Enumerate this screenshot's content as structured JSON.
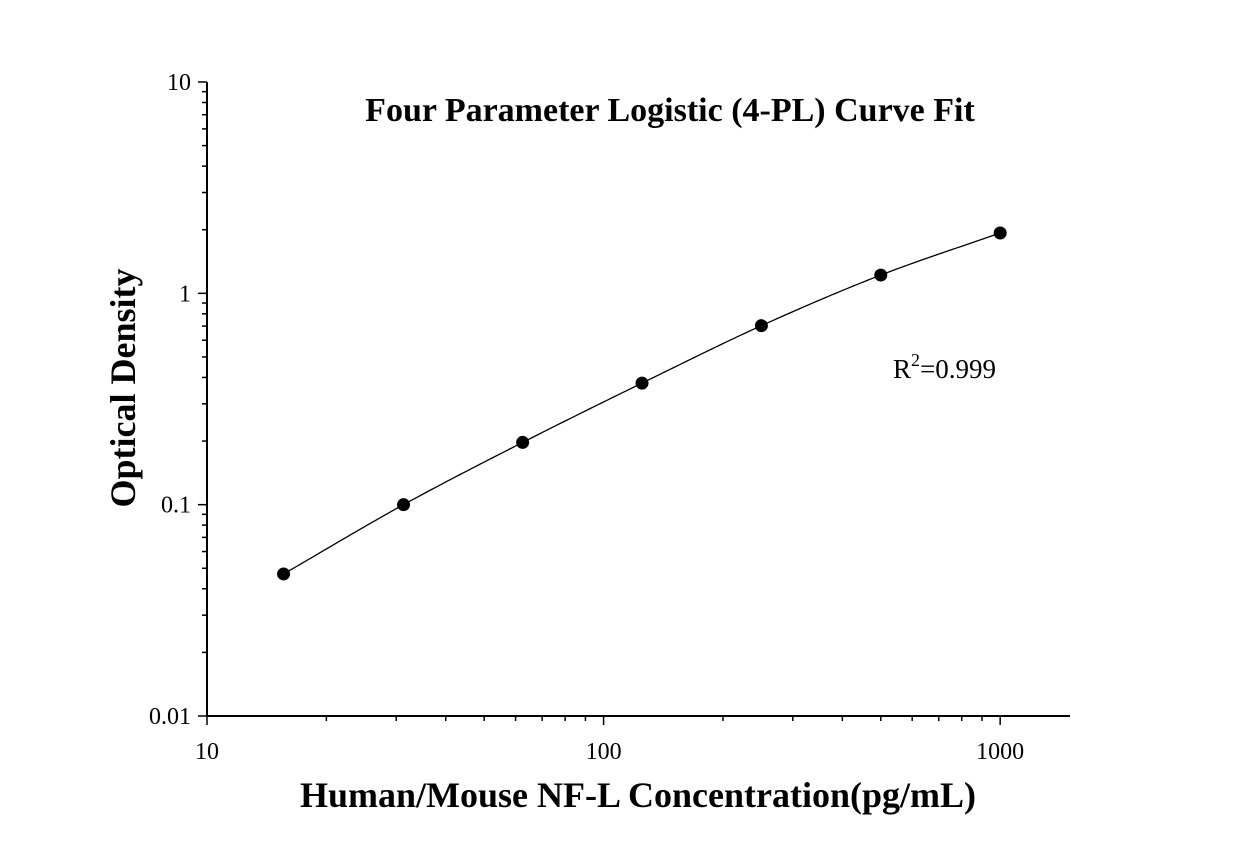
{
  "chart_data": {
    "type": "scatter",
    "title": "Four Parameter Logistic (4-PL) Curve Fit",
    "xlabel": "Human/Mouse NF-L Concentration(pg/mL)",
    "ylabel": "Optical Density",
    "x_scale": "log",
    "y_scale": "log",
    "xlim": [
      10,
      1500
    ],
    "ylim": [
      0.01,
      10
    ],
    "x_ticks": [
      10,
      100,
      1000
    ],
    "y_ticks": [
      0.01,
      0.1,
      1,
      10
    ],
    "x_tick_labels": [
      "10",
      "100",
      "1000"
    ],
    "y_tick_labels": [
      "0.01",
      "0.1",
      "1",
      "10"
    ],
    "grid": false,
    "series": [
      {
        "x": [
          15.6,
          31.3,
          62.5,
          125,
          250,
          500,
          1000
        ],
        "y": [
          0.047,
          0.1,
          0.197,
          0.376,
          0.703,
          1.22,
          1.93
        ]
      }
    ],
    "fit_curve": true,
    "annotation": {
      "base": "R",
      "superscript": "2",
      "value_text": "=0.999"
    },
    "colors": {
      "points": "#000000",
      "curve": "#000000",
      "axes": "#000000"
    }
  }
}
